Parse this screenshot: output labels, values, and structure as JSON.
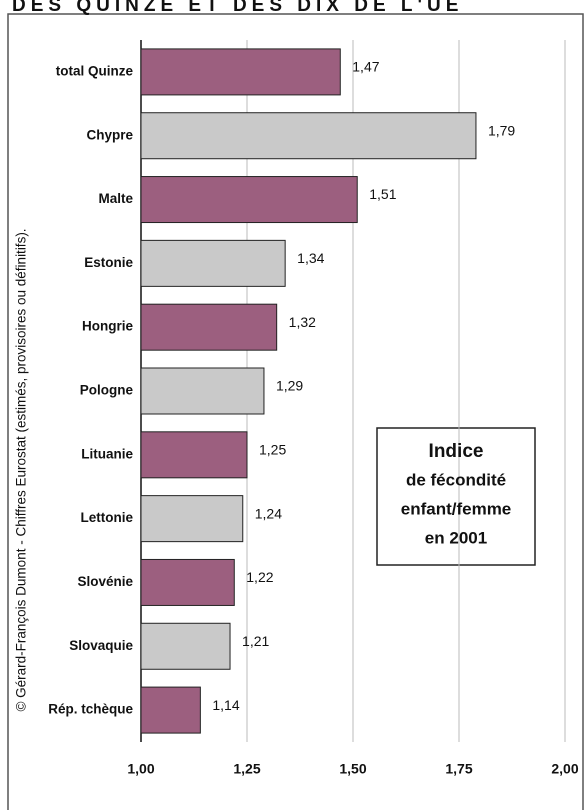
{
  "chart_data": {
    "type": "barh",
    "title": "DES QUINZE ET DES DIX DE L'UE",
    "source": "© Gérard-François Dumont - Chiffres Eurostat (estimés, provisoires ou définitifs).",
    "annotation": [
      "Indice",
      "de fécondité",
      "enfant/femme",
      "en 2001"
    ],
    "categories": [
      "total Quinze",
      "Chypre",
      "Malte",
      "Estonie",
      "Hongrie",
      "Pologne",
      "Lituanie",
      "Lettonie",
      "Slovénie",
      "Slovaquie",
      "Rép. tchèque"
    ],
    "values": [
      1.47,
      1.79,
      1.51,
      1.34,
      1.32,
      1.29,
      1.25,
      1.24,
      1.22,
      1.21,
      1.14
    ],
    "value_labels": [
      "1,47",
      "1,79",
      "1,51",
      "1,34",
      "1,32",
      "1,29",
      "1,25",
      "1,24",
      "1,22",
      "1,21",
      "1,14"
    ],
    "colors": [
      "#9c5f7f",
      "#c9c9c9",
      "#9c5f7f",
      "#c9c9c9",
      "#9c5f7f",
      "#c9c9c9",
      "#9c5f7f",
      "#c9c9c9",
      "#9c5f7f",
      "#c9c9c9",
      "#9c5f7f"
    ],
    "xlim": [
      1,
      2
    ],
    "xticks": [
      {
        "value": 1,
        "label": "1,00"
      },
      {
        "value": 1.25,
        "label": "1,25"
      },
      {
        "value": 1.5,
        "label": "1,50"
      },
      {
        "value": 1.75,
        "label": "1,75"
      },
      {
        "value": 2,
        "label": "2,00"
      }
    ],
    "grid": true
  }
}
